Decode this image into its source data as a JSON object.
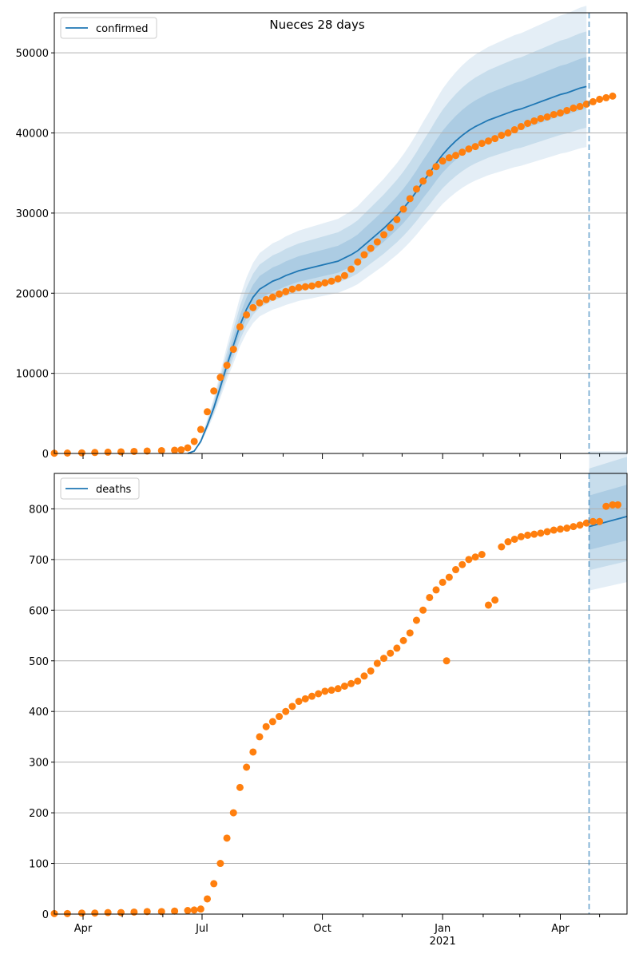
{
  "chart_data": [
    {
      "type": "line",
      "title": "Nueces 28 days",
      "legend": {
        "label": "confirmed",
        "placement": "top-left"
      },
      "y_ticks": [
        "0",
        "10000",
        "20000",
        "30000",
        "40000",
        "50000"
      ],
      "y_tick_values": [
        0,
        10000,
        20000,
        30000,
        40000,
        50000
      ],
      "ylim": [
        0,
        55000
      ],
      "xlim": [
        "2020-03-10",
        "2021-05-22"
      ],
      "grid": "horizontal",
      "forecast_start": "2021-04-23",
      "model_line": {
        "x": [
          "2020-06-20",
          "2020-06-25",
          "2020-06-30",
          "2020-07-05",
          "2020-07-10",
          "2020-07-15",
          "2020-07-20",
          "2020-07-25",
          "2020-07-30",
          "2020-08-04",
          "2020-08-09",
          "2020-08-14",
          "2020-08-19",
          "2020-08-24",
          "2020-08-29",
          "2020-09-03",
          "2020-09-08",
          "2020-09-13",
          "2020-09-18",
          "2020-09-23",
          "2020-09-28",
          "2020-10-03",
          "2020-10-08",
          "2020-10-13",
          "2020-10-18",
          "2020-10-23",
          "2020-10-28",
          "2020-11-02",
          "2020-11-07",
          "2020-11-12",
          "2020-11-17",
          "2020-11-22",
          "2020-11-27",
          "2020-12-02",
          "2020-12-07",
          "2020-12-12",
          "2020-12-17",
          "2020-12-22",
          "2020-12-27",
          "2021-01-01",
          "2021-01-06",
          "2021-01-11",
          "2021-01-16",
          "2021-01-21",
          "2021-01-26",
          "2021-01-31",
          "2021-02-05",
          "2021-02-10",
          "2021-02-15",
          "2021-02-20",
          "2021-02-25",
          "2021-03-02",
          "2021-03-07",
          "2021-03-12",
          "2021-03-17",
          "2021-03-22",
          "2021-03-27",
          "2021-04-01",
          "2021-04-06",
          "2021-04-11",
          "2021-04-16",
          "2021-04-21"
        ],
        "y": [
          0,
          300,
          1500,
          3500,
          5700,
          8300,
          11000,
          13500,
          16000,
          18000,
          19500,
          20500,
          21000,
          21500,
          21800,
          22200,
          22500,
          22800,
          23000,
          23200,
          23400,
          23600,
          23800,
          24000,
          24400,
          24800,
          25300,
          26000,
          26700,
          27400,
          28100,
          28900,
          29700,
          30600,
          31600,
          32700,
          33900,
          35000,
          36200,
          37300,
          38200,
          39000,
          39700,
          40300,
          40800,
          41200,
          41600,
          41900,
          42200,
          42500,
          42800,
          43000,
          43300,
          43600,
          43900,
          44200,
          44500,
          44800,
          45000,
          45300,
          45600,
          45800
        ]
      },
      "observed_points": {
        "x": [
          "2020-03-10",
          "2020-03-20",
          "2020-03-31",
          "2020-04-10",
          "2020-04-20",
          "2020-04-30",
          "2020-05-10",
          "2020-05-20",
          "2020-05-31",
          "2020-06-10",
          "2020-06-15",
          "2020-06-20",
          "2020-06-25",
          "2020-06-30",
          "2020-07-05",
          "2020-07-10",
          "2020-07-15",
          "2020-07-20",
          "2020-07-25",
          "2020-07-30",
          "2020-08-04",
          "2020-08-09",
          "2020-08-14",
          "2020-08-19",
          "2020-08-24",
          "2020-08-29",
          "2020-09-03",
          "2020-09-08",
          "2020-09-13",
          "2020-09-18",
          "2020-09-23",
          "2020-09-28",
          "2020-10-03",
          "2020-10-08",
          "2020-10-13",
          "2020-10-18",
          "2020-10-23",
          "2020-10-28",
          "2020-11-02",
          "2020-11-07",
          "2020-11-12",
          "2020-11-17",
          "2020-11-22",
          "2020-11-27",
          "2020-12-02",
          "2020-12-07",
          "2020-12-12",
          "2020-12-17",
          "2020-12-22",
          "2020-12-27",
          "2021-01-01",
          "2021-01-06",
          "2021-01-11",
          "2021-01-16",
          "2021-01-21",
          "2021-01-26",
          "2021-01-31",
          "2021-02-05",
          "2021-02-10",
          "2021-02-15",
          "2021-02-20",
          "2021-02-25",
          "2021-03-02",
          "2021-03-07",
          "2021-03-12",
          "2021-03-17",
          "2021-03-22",
          "2021-03-27",
          "2021-04-01",
          "2021-04-06",
          "2021-04-11",
          "2021-04-16",
          "2021-04-21",
          "2021-04-26",
          "2021-05-01",
          "2021-05-06",
          "2021-05-11"
        ],
        "y": [
          30,
          50,
          80,
          120,
          160,
          200,
          250,
          300,
          350,
          400,
          450,
          700,
          1500,
          3000,
          5200,
          7800,
          9500,
          11000,
          13000,
          15800,
          17300,
          18200,
          18800,
          19200,
          19500,
          19900,
          20200,
          20500,
          20700,
          20800,
          20900,
          21100,
          21300,
          21500,
          21800,
          22200,
          23000,
          23900,
          24800,
          25600,
          26400,
          27300,
          28200,
          29200,
          30500,
          31800,
          33000,
          34000,
          35000,
          35800,
          36500,
          36900,
          37200,
          37600,
          38000,
          38300,
          38700,
          39000,
          39300,
          39700,
          40000,
          40400,
          40800,
          41200,
          41500,
          41800,
          42000,
          42300,
          42500,
          42800,
          43100,
          43300,
          43600,
          43900,
          44200,
          44400,
          44600
        ]
      }
    },
    {
      "type": "line",
      "legend": {
        "label": "deaths",
        "placement": "top-left"
      },
      "y_ticks": [
        "0",
        "100",
        "200",
        "300",
        "400",
        "500",
        "600",
        "700",
        "800"
      ],
      "y_tick_values": [
        0,
        100,
        200,
        300,
        400,
        500,
        600,
        700,
        800
      ],
      "ylim": [
        0,
        870
      ],
      "xlim": [
        "2020-03-10",
        "2021-05-22"
      ],
      "x_ticks": [
        "Apr",
        "Jul",
        "Oct",
        "Jan",
        "Apr"
      ],
      "x_tick_dates": [
        "2020-04-01",
        "2020-07-01",
        "2020-10-01",
        "2021-01-01",
        "2021-04-01"
      ],
      "x_year_label": "2021",
      "grid": "horizontal",
      "forecast_start": "2021-04-23",
      "model_line": {
        "x": [
          "2021-04-23",
          "2021-05-22"
        ],
        "y": [
          765,
          785
        ]
      },
      "observed_points": {
        "x": [
          "2020-03-10",
          "2020-03-20",
          "2020-03-31",
          "2020-04-10",
          "2020-04-20",
          "2020-04-30",
          "2020-05-10",
          "2020-05-20",
          "2020-05-31",
          "2020-06-10",
          "2020-06-20",
          "2020-06-25",
          "2020-06-30",
          "2020-07-05",
          "2020-07-10",
          "2020-07-15",
          "2020-07-20",
          "2020-07-25",
          "2020-07-30",
          "2020-08-04",
          "2020-08-09",
          "2020-08-14",
          "2020-08-19",
          "2020-08-24",
          "2020-08-29",
          "2020-09-03",
          "2020-09-08",
          "2020-09-13",
          "2020-09-18",
          "2020-09-23",
          "2020-09-28",
          "2020-10-03",
          "2020-10-08",
          "2020-10-13",
          "2020-10-18",
          "2020-10-23",
          "2020-10-28",
          "2020-11-02",
          "2020-11-07",
          "2020-11-12",
          "2020-11-17",
          "2020-11-22",
          "2020-11-27",
          "2020-12-02",
          "2020-12-07",
          "2020-12-12",
          "2020-12-17",
          "2020-12-22",
          "2020-12-27",
          "2021-01-01",
          "2021-01-04",
          "2021-01-06",
          "2021-01-11",
          "2021-01-16",
          "2021-01-21",
          "2021-01-26",
          "2021-01-31",
          "2021-02-05",
          "2021-02-10",
          "2021-02-15",
          "2021-02-20",
          "2021-02-25",
          "2021-03-02",
          "2021-03-07",
          "2021-03-12",
          "2021-03-17",
          "2021-03-22",
          "2021-03-27",
          "2021-04-01",
          "2021-04-06",
          "2021-04-11",
          "2021-04-16",
          "2021-04-21",
          "2021-04-26",
          "2021-05-01",
          "2021-05-06",
          "2021-05-11",
          "2021-05-15"
        ],
        "y": [
          1,
          1,
          2,
          2,
          3,
          3,
          4,
          5,
          5,
          6,
          7,
          8,
          10,
          30,
          60,
          100,
          150,
          200,
          250,
          290,
          320,
          350,
          370,
          380,
          390,
          400,
          410,
          420,
          425,
          430,
          435,
          440,
          442,
          445,
          450,
          455,
          460,
          470,
          480,
          495,
          505,
          515,
          525,
          540,
          555,
          580,
          600,
          625,
          640,
          655,
          500,
          665,
          680,
          690,
          700,
          705,
          710,
          610,
          620,
          725,
          735,
          740,
          745,
          748,
          750,
          752,
          755,
          758,
          760,
          762,
          765,
          768,
          772,
          775,
          775,
          805,
          808,
          808
        ]
      }
    }
  ]
}
